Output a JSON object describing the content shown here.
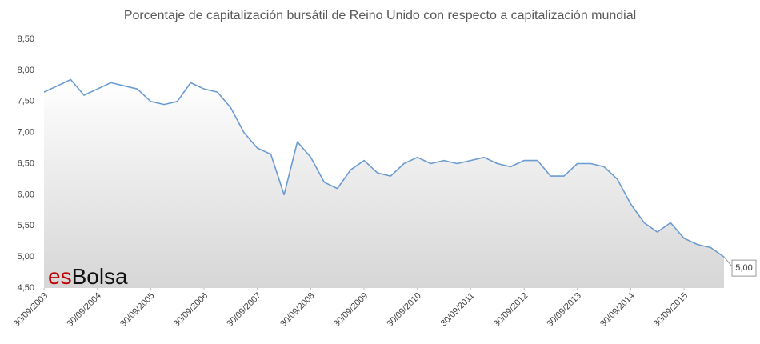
{
  "chart_data": {
    "type": "line",
    "title": "Porcentaje de capitalización  bursátil de Reino Unido con respecto a capitalización  mundial",
    "logo": {
      "prefix": "es",
      "name": "Bolsa"
    },
    "x": [
      "30/09/2003",
      "31/12/2003",
      "31/03/2004",
      "30/06/2004",
      "30/09/2004",
      "31/12/2004",
      "31/03/2005",
      "30/06/2005",
      "30/09/2005",
      "31/12/2005",
      "31/03/2006",
      "30/06/2006",
      "30/09/2006",
      "31/12/2006",
      "31/03/2007",
      "30/06/2007",
      "30/09/2007",
      "31/12/2007",
      "31/03/2008",
      "30/06/2008",
      "30/09/2008",
      "31/12/2008",
      "31/03/2009",
      "30/06/2009",
      "30/09/2009",
      "31/12/2009",
      "31/03/2010",
      "30/06/2010",
      "30/09/2010",
      "31/12/2010",
      "31/03/2011",
      "30/06/2011",
      "30/09/2011",
      "31/12/2011",
      "31/03/2012",
      "30/06/2012",
      "30/09/2012",
      "31/12/2012",
      "31/03/2013",
      "30/06/2013",
      "30/09/2013",
      "31/12/2013",
      "31/03/2014",
      "30/06/2014",
      "30/09/2014",
      "31/12/2014",
      "31/03/2015",
      "30/06/2015",
      "30/09/2015",
      "31/12/2015",
      "31/03/2016",
      "30/06/2016"
    ],
    "series": [
      {
        "name": "Reino Unido",
        "color": "#6a9bd1",
        "values": [
          7.65,
          7.75,
          7.85,
          7.6,
          7.7,
          7.8,
          7.75,
          7.7,
          7.5,
          7.45,
          7.5,
          7.8,
          7.7,
          7.65,
          7.4,
          7.0,
          6.75,
          6.65,
          6.0,
          6.85,
          6.6,
          6.2,
          6.1,
          6.4,
          6.55,
          6.35,
          6.3,
          6.5,
          6.6,
          6.5,
          6.55,
          6.5,
          6.55,
          6.6,
          6.5,
          6.45,
          6.55,
          6.55,
          6.3,
          6.3,
          6.5,
          6.5,
          6.45,
          6.25,
          5.85,
          5.55,
          5.4,
          5.55,
          5.3,
          5.2,
          5.15,
          5.0
        ],
        "value_labels": [
          null,
          null,
          null,
          null,
          null,
          null,
          null,
          null,
          null,
          null,
          null,
          null,
          null,
          null,
          null,
          null,
          null,
          null,
          null,
          null,
          null,
          null,
          null,
          null,
          null,
          null,
          null,
          null,
          null,
          null,
          null,
          null,
          null,
          null,
          null,
          null,
          null,
          null,
          null,
          null,
          null,
          null,
          null,
          null,
          null,
          null,
          null,
          null,
          null,
          null,
          null,
          "5,00"
        ]
      }
    ],
    "xlim": [
      "30/09/2003",
      "30/06/2016"
    ],
    "xticks": [
      "30/09/2003",
      "30/09/2004",
      "30/09/2005",
      "30/09/2006",
      "30/09/2007",
      "30/09/2008",
      "30/09/2009",
      "30/09/2010",
      "30/09/2011",
      "30/09/2012",
      "30/09/2013",
      "30/09/2014",
      "30/09/2015"
    ],
    "ylim": [
      4.5,
      8.5
    ],
    "yticks": [
      {
        "value": 4.5,
        "label": "4,50"
      },
      {
        "value": 5,
        "label": "5,00"
      },
      {
        "value": 5.5,
        "label": "5,50"
      },
      {
        "value": 6,
        "label": "6,00"
      },
      {
        "value": 6.5,
        "label": "6,50"
      },
      {
        "value": 7,
        "label": "7,00"
      },
      {
        "value": 7.5,
        "label": "7,50"
      },
      {
        "value": 8,
        "label": "8,00"
      },
      {
        "value": 8.5,
        "label": "8,50"
      }
    ],
    "grid": false
  }
}
